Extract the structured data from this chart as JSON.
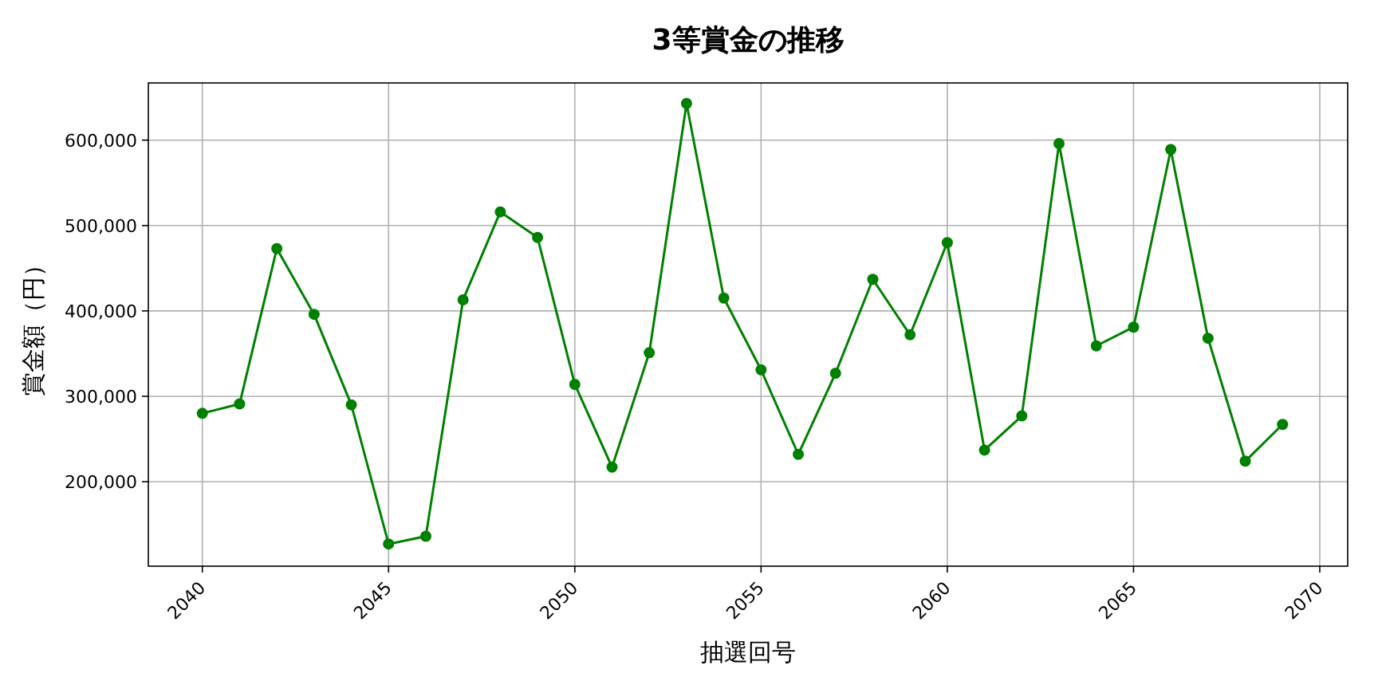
{
  "chart_data": {
    "type": "line",
    "title": "3等賞金の推移",
    "xlabel": "抽選回号",
    "ylabel": "賞金額（円）",
    "x": [
      2040,
      2041,
      2042,
      2043,
      2044,
      2045,
      2046,
      2047,
      2048,
      2049,
      2050,
      2051,
      2052,
      2053,
      2054,
      2055,
      2056,
      2057,
      2058,
      2059,
      2060,
      2061,
      2062,
      2063,
      2064,
      2065,
      2066,
      2067,
      2068,
      2069
    ],
    "series": [
      {
        "color": "#008000",
        "values": [
          280000,
          291000,
          473000,
          396000,
          290000,
          127000,
          136000,
          413000,
          516000,
          486000,
          314000,
          217000,
          351000,
          643000,
          415000,
          331000,
          232000,
          327000,
          437000,
          372000,
          480000,
          237000,
          277000,
          596000,
          359000,
          381000,
          589000,
          368000,
          224000,
          267000
        ]
      }
    ],
    "xlim": [
      2038.55,
      2070.75
    ],
    "ylim": [
      101000,
      667000
    ],
    "xticks": [
      2040,
      2045,
      2050,
      2055,
      2060,
      2065,
      2070
    ],
    "yticks": [
      {
        "value": 200000,
        "label": "200,000"
      },
      {
        "value": 300000,
        "label": "300,000"
      },
      {
        "value": 400000,
        "label": "400,000"
      },
      {
        "value": 500000,
        "label": "500,000"
      },
      {
        "value": 600000,
        "label": "600,000"
      }
    ],
    "grid": true,
    "marker": "circle",
    "line_style": "solid"
  }
}
